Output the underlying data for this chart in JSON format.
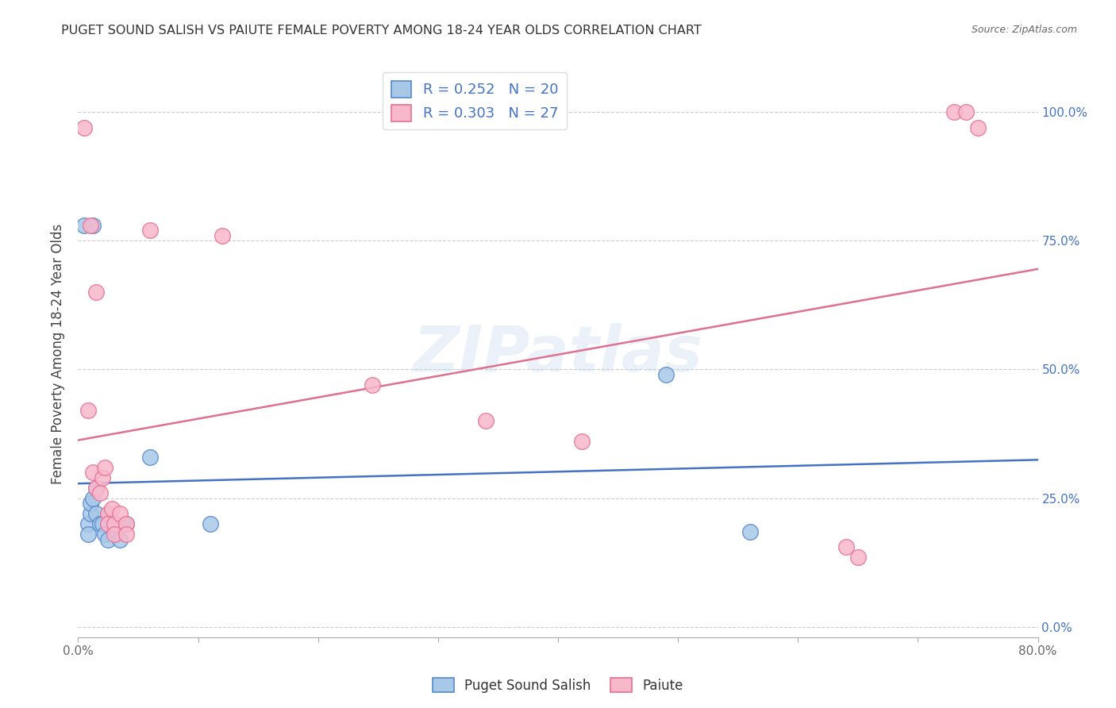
{
  "title": "PUGET SOUND SALISH VS PAIUTE FEMALE POVERTY AMONG 18-24 YEAR OLDS CORRELATION CHART",
  "source": "Source: ZipAtlas.com",
  "ylabel": "Female Poverty Among 18-24 Year Olds",
  "xlim": [
    0.0,
    0.8
  ],
  "ylim": [
    -0.02,
    1.08
  ],
  "yticks": [
    0.0,
    0.25,
    0.5,
    0.75,
    1.0
  ],
  "ytick_labels": [
    "0.0%",
    "25.0%",
    "50.0%",
    "75.0%",
    "100.0%"
  ],
  "watermark_text": "ZIPatlas",
  "salish_color": "#a8c8e8",
  "paiute_color": "#f8b8cc",
  "salish_edge_color": "#5588cc",
  "paiute_edge_color": "#e87090",
  "salish_line_color": "#4472c4",
  "paiute_line_color": "#e07090",
  "legend_label_1": "R = 0.252   N = 20",
  "legend_label_2": "R = 0.303   N = 27",
  "bottom_legend_1": "Puget Sound Salish",
  "bottom_legend_2": "Paiute",
  "salish_points": [
    [
      0.005,
      0.78
    ],
    [
      0.012,
      0.78
    ],
    [
      0.008,
      0.2
    ],
    [
      0.008,
      0.18
    ],
    [
      0.01,
      0.22
    ],
    [
      0.01,
      0.24
    ],
    [
      0.012,
      0.25
    ],
    [
      0.015,
      0.27
    ],
    [
      0.015,
      0.22
    ],
    [
      0.018,
      0.2
    ],
    [
      0.02,
      0.2
    ],
    [
      0.022,
      0.18
    ],
    [
      0.025,
      0.17
    ],
    [
      0.03,
      0.19
    ],
    [
      0.035,
      0.17
    ],
    [
      0.04,
      0.2
    ],
    [
      0.06,
      0.33
    ],
    [
      0.11,
      0.2
    ],
    [
      0.49,
      0.49
    ],
    [
      0.56,
      0.185
    ]
  ],
  "paiute_points": [
    [
      0.005,
      0.97
    ],
    [
      0.01,
      0.78
    ],
    [
      0.015,
      0.65
    ],
    [
      0.008,
      0.42
    ],
    [
      0.012,
      0.3
    ],
    [
      0.015,
      0.27
    ],
    [
      0.018,
      0.26
    ],
    [
      0.02,
      0.29
    ],
    [
      0.022,
      0.31
    ],
    [
      0.025,
      0.22
    ],
    [
      0.025,
      0.2
    ],
    [
      0.028,
      0.23
    ],
    [
      0.03,
      0.2
    ],
    [
      0.03,
      0.18
    ],
    [
      0.035,
      0.22
    ],
    [
      0.04,
      0.2
    ],
    [
      0.04,
      0.18
    ],
    [
      0.06,
      0.77
    ],
    [
      0.12,
      0.76
    ],
    [
      0.245,
      0.47
    ],
    [
      0.34,
      0.4
    ],
    [
      0.42,
      0.36
    ],
    [
      0.64,
      0.155
    ],
    [
      0.65,
      0.135
    ],
    [
      0.73,
      1.0
    ],
    [
      0.74,
      1.0
    ],
    [
      0.75,
      0.97
    ]
  ],
  "background_color": "#ffffff",
  "grid_color": "#cccccc",
  "title_color": "#333333",
  "ylabel_color": "#444444",
  "right_tick_color": "#4472c4",
  "tick_label_color": "#666666",
  "source_color": "#666666"
}
